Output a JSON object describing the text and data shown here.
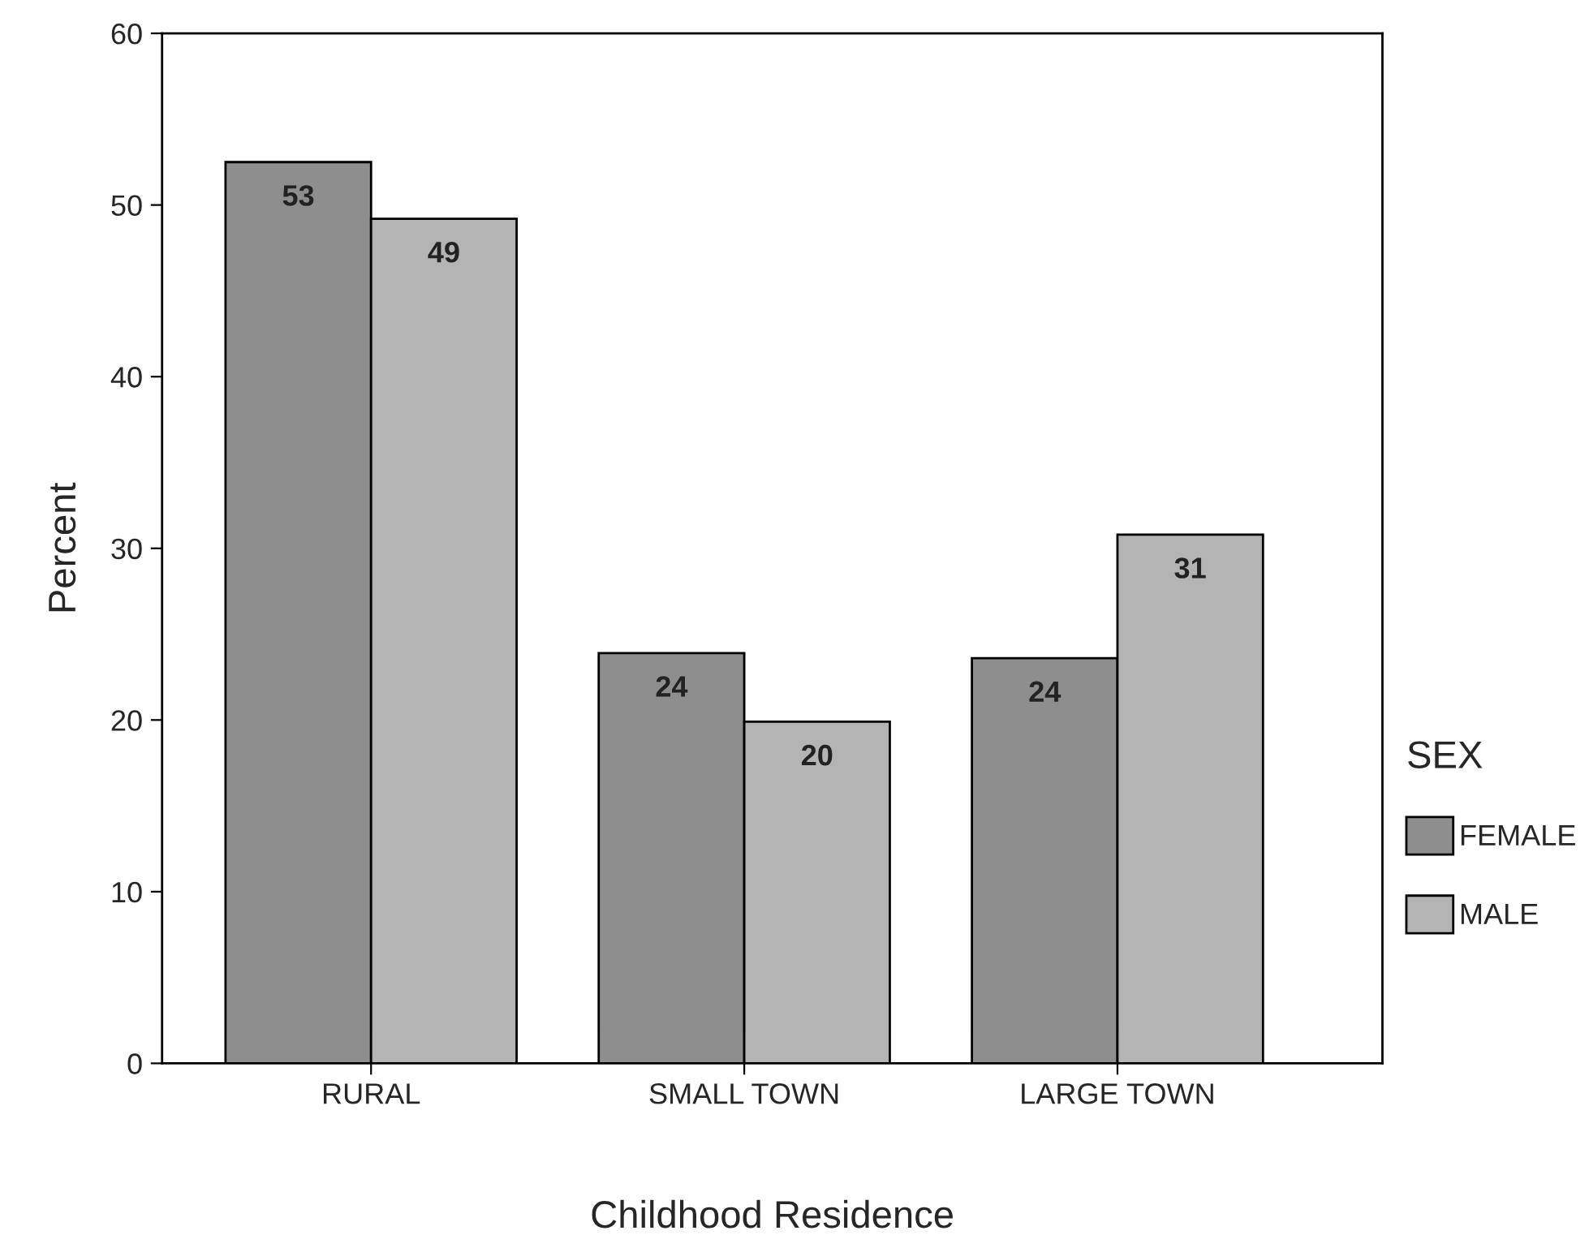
{
  "chart_data": {
    "type": "bar",
    "xlabel": "Childhood Residence",
    "ylabel": "Percent",
    "legend_title": "SEX",
    "legend": "right",
    "grid": false,
    "categories": [
      "RURAL",
      "SMALL TOWN",
      "LARGE TOWN"
    ],
    "ylim": [
      0,
      60
    ],
    "yticks": [
      0,
      10,
      20,
      30,
      40,
      50,
      60
    ],
    "series": [
      {
        "name": "FEMALE",
        "color": "#8e8e8e",
        "values": [
          52.5,
          23.9,
          23.6
        ],
        "value_labels": [
          "53",
          "24",
          "24"
        ]
      },
      {
        "name": "MALE",
        "color": "#b4b4b4",
        "values": [
          49.2,
          19.9,
          30.8
        ],
        "value_labels": [
          "49",
          "20",
          "31"
        ]
      }
    ]
  }
}
